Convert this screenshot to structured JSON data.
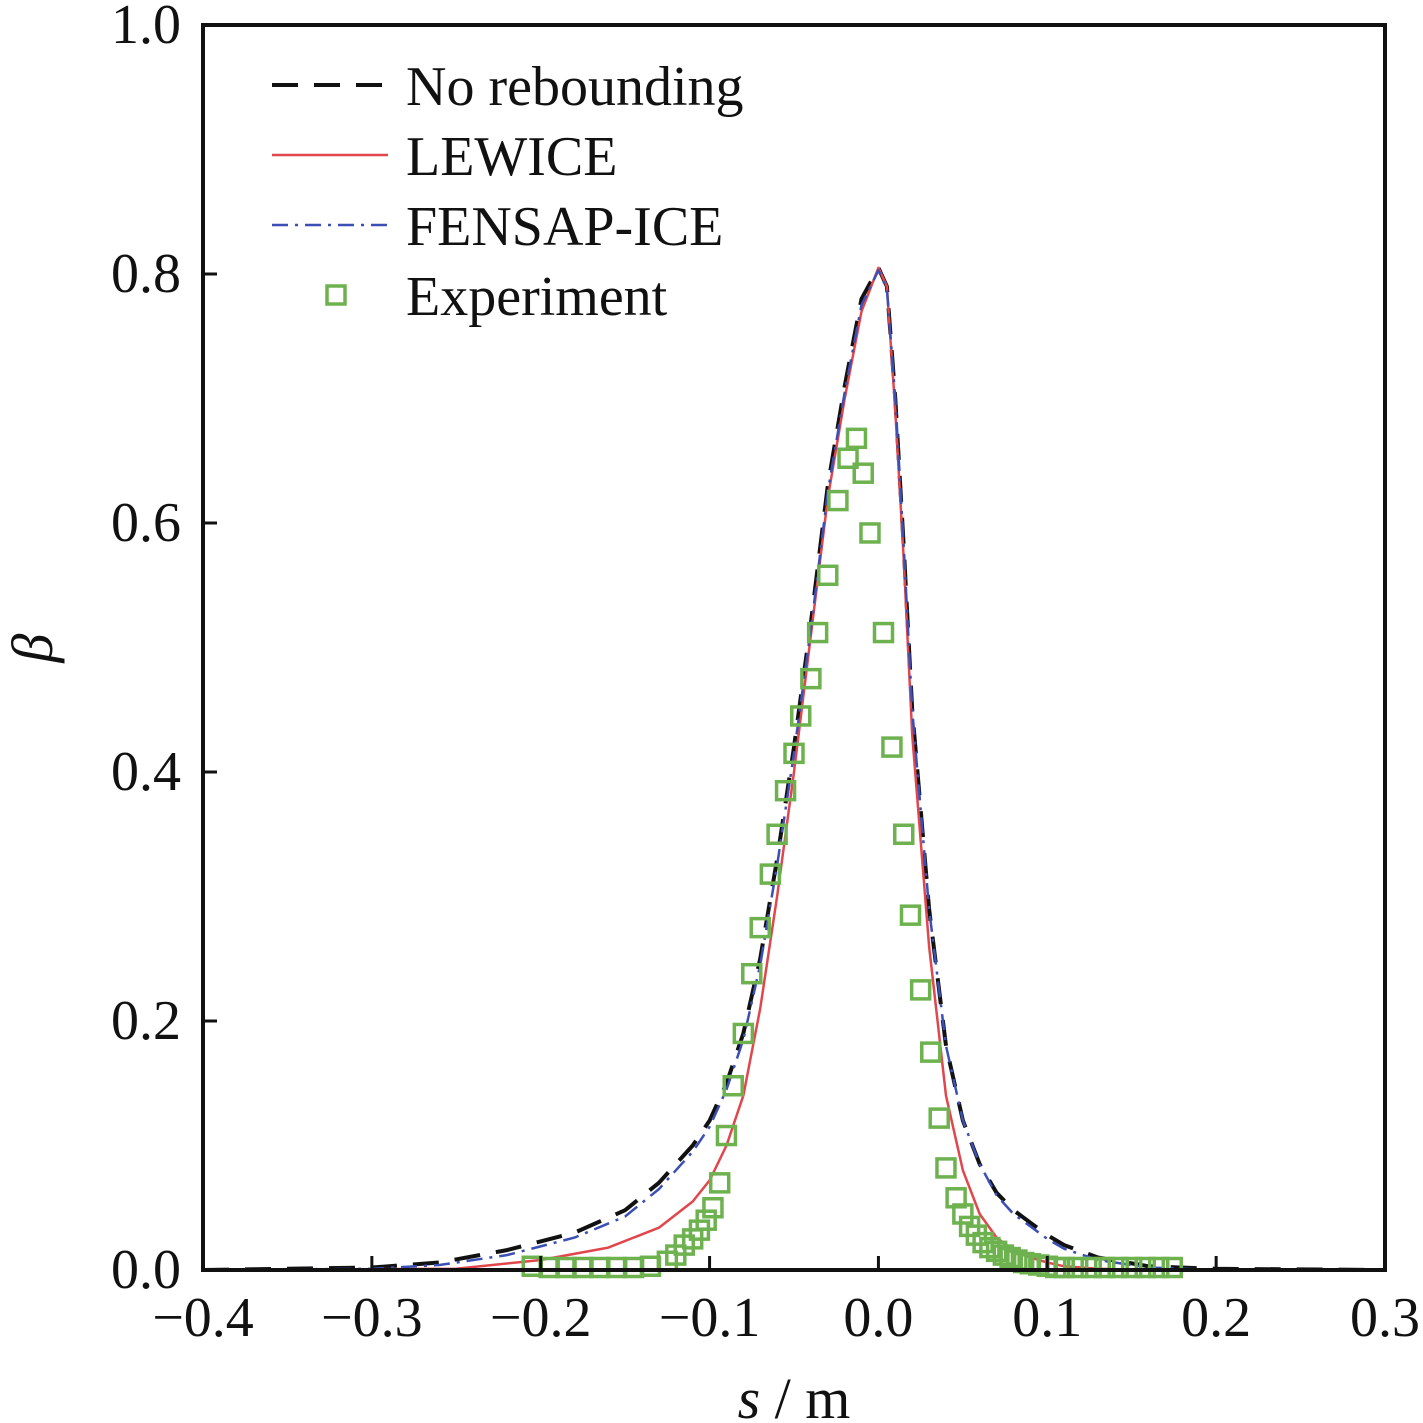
{
  "chart_data": {
    "type": "line",
    "title": "",
    "xlabel": {
      "var": "s",
      "unit": " / m"
    },
    "ylabel": "β",
    "xlim": [
      -0.4,
      0.3
    ],
    "ylim": [
      0.0,
      1.0
    ],
    "xticks": [
      "−0.4",
      "−0.3",
      "−0.2",
      "−0.1",
      "0.0",
      "0.1",
      "0.2",
      "0.3"
    ],
    "yticks": [
      "0.0",
      "0.2",
      "0.4",
      "0.6",
      "0.8",
      "1.0"
    ],
    "xtick_values": [
      -0.4,
      -0.3,
      -0.2,
      -0.1,
      0.0,
      0.1,
      0.2,
      0.3
    ],
    "ytick_values": [
      0.0,
      0.2,
      0.4,
      0.6,
      0.8,
      1.0
    ],
    "grid": false,
    "legend_position": "top-left",
    "series": [
      {
        "name": "No rebounding",
        "style": "dashed",
        "color": "#111111",
        "x": [
          -0.4,
          -0.3,
          -0.26,
          -0.22,
          -0.18,
          -0.15,
          -0.13,
          -0.11,
          -0.1,
          -0.09,
          -0.08,
          -0.07,
          -0.06,
          -0.05,
          -0.04,
          -0.03,
          -0.02,
          -0.01,
          0.0,
          0.005,
          0.01,
          0.015,
          0.02,
          0.03,
          0.04,
          0.05,
          0.06,
          0.07,
          0.08,
          0.09,
          0.1,
          0.11,
          0.13,
          0.16,
          0.2,
          0.3
        ],
        "y": [
          0.0,
          0.002,
          0.006,
          0.016,
          0.03,
          0.048,
          0.07,
          0.1,
          0.12,
          0.15,
          0.19,
          0.25,
          0.33,
          0.42,
          0.52,
          0.63,
          0.71,
          0.78,
          0.805,
          0.79,
          0.7,
          0.58,
          0.45,
          0.29,
          0.18,
          0.12,
          0.085,
          0.062,
          0.048,
          0.038,
          0.028,
          0.02,
          0.01,
          0.003,
          0.001,
          0.0
        ]
      },
      {
        "name": "LEWICE",
        "style": "solid",
        "color": "#e0474c",
        "x": [
          -0.4,
          -0.25,
          -0.2,
          -0.16,
          -0.13,
          -0.11,
          -0.1,
          -0.09,
          -0.08,
          -0.07,
          -0.06,
          -0.05,
          -0.04,
          -0.03,
          -0.02,
          -0.01,
          0.0,
          0.005,
          0.01,
          0.015,
          0.02,
          0.03,
          0.04,
          0.05,
          0.06,
          0.07,
          0.08,
          0.09,
          0.1,
          0.11,
          0.13,
          0.16,
          0.2,
          0.3
        ],
        "y": [
          0.0,
          0.001,
          0.008,
          0.018,
          0.034,
          0.055,
          0.072,
          0.1,
          0.14,
          0.21,
          0.3,
          0.4,
          0.51,
          0.62,
          0.7,
          0.77,
          0.805,
          0.79,
          0.69,
          0.57,
          0.43,
          0.26,
          0.14,
          0.08,
          0.045,
          0.026,
          0.016,
          0.01,
          0.006,
          0.003,
          0.001,
          0.0,
          0.0,
          0.0
        ]
      },
      {
        "name": "FENSAP-ICE",
        "style": "dashdot",
        "color": "#3c4fb5",
        "x": [
          -0.4,
          -0.3,
          -0.26,
          -0.22,
          -0.18,
          -0.15,
          -0.13,
          -0.11,
          -0.1,
          -0.09,
          -0.08,
          -0.07,
          -0.06,
          -0.05,
          -0.04,
          -0.03,
          -0.02,
          -0.01,
          0.0,
          0.005,
          0.01,
          0.015,
          0.02,
          0.03,
          0.04,
          0.05,
          0.06,
          0.07,
          0.08,
          0.09,
          0.1,
          0.11,
          0.13,
          0.16,
          0.2,
          0.3
        ],
        "y": [
          0.0,
          0.001,
          0.004,
          0.012,
          0.026,
          0.043,
          0.065,
          0.095,
          0.115,
          0.145,
          0.185,
          0.245,
          0.325,
          0.415,
          0.515,
          0.625,
          0.705,
          0.775,
          0.803,
          0.788,
          0.7,
          0.58,
          0.45,
          0.29,
          0.18,
          0.12,
          0.085,
          0.06,
          0.045,
          0.035,
          0.025,
          0.017,
          0.008,
          0.002,
          0.0,
          0.0
        ]
      },
      {
        "name": "Experiment",
        "style": "marker-square",
        "color": "#6db24f",
        "x": [
          -0.205,
          -0.195,
          -0.185,
          -0.175,
          -0.165,
          -0.155,
          -0.145,
          -0.135,
          -0.125,
          -0.12,
          -0.115,
          -0.11,
          -0.106,
          -0.102,
          -0.098,
          -0.094,
          -0.09,
          -0.086,
          -0.08,
          -0.075,
          -0.07,
          -0.064,
          -0.06,
          -0.055,
          -0.05,
          -0.046,
          -0.04,
          -0.036,
          -0.03,
          -0.024,
          -0.018,
          -0.013,
          -0.009,
          -0.005,
          0.003,
          0.008,
          0.015,
          0.019,
          0.025,
          0.031,
          0.036,
          0.04,
          0.046,
          0.05,
          0.054,
          0.058,
          0.062,
          0.066,
          0.07,
          0.074,
          0.078,
          0.082,
          0.086,
          0.09,
          0.095,
          0.1,
          0.105,
          0.11,
          0.118,
          0.126,
          0.134,
          0.142,
          0.15,
          0.158,
          0.166,
          0.174
        ],
        "y": [
          0.003,
          0.002,
          0.002,
          0.002,
          0.002,
          0.002,
          0.002,
          0.003,
          0.007,
          0.012,
          0.02,
          0.025,
          0.032,
          0.04,
          0.05,
          0.07,
          0.108,
          0.148,
          0.19,
          0.238,
          0.275,
          0.318,
          0.35,
          0.385,
          0.415,
          0.445,
          0.475,
          0.512,
          0.558,
          0.618,
          0.652,
          0.668,
          0.64,
          0.592,
          0.512,
          0.42,
          0.35,
          0.285,
          0.225,
          0.175,
          0.122,
          0.082,
          0.058,
          0.045,
          0.035,
          0.028,
          0.022,
          0.018,
          0.015,
          0.012,
          0.01,
          0.008,
          0.006,
          0.005,
          0.004,
          0.003,
          0.002,
          0.002,
          0.002,
          0.002,
          0.002,
          0.002,
          0.002,
          0.002,
          0.002,
          0.002
        ]
      }
    ]
  }
}
